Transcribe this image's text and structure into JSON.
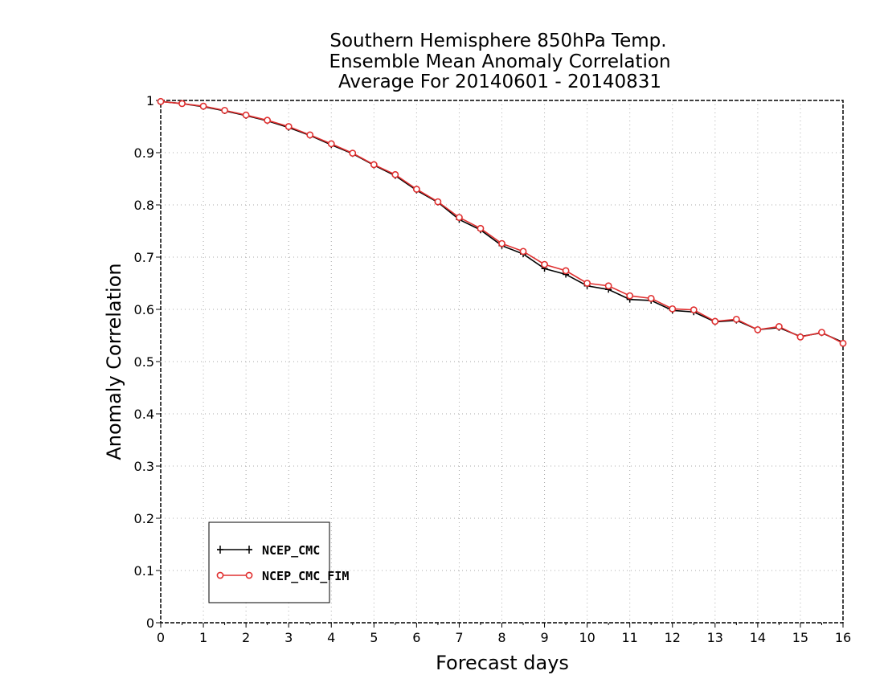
{
  "chart_data": {
    "type": "line",
    "title": [
      "Southern Hemisphere 850hPa Temp.",
      "Ensemble Mean Anomaly Correlation",
      "Average For 20140601 - 20140831"
    ],
    "xlabel": "Forecast days",
    "ylabel": "Anomaly Correlation",
    "xlim": [
      0,
      16
    ],
    "ylim": [
      0,
      1
    ],
    "xticks": [
      "0",
      "1",
      "2",
      "3",
      "4",
      "5",
      "6",
      "7",
      "8",
      "9",
      "10",
      "11",
      "12",
      "13",
      "14",
      "15",
      "16"
    ],
    "yticks": [
      "0",
      "0.1",
      "0.2",
      "0.3",
      "0.4",
      "0.5",
      "0.6",
      "0.7",
      "0.8",
      "0.9",
      "1"
    ],
    "grid": true,
    "legend_position": "bottom-left",
    "x": [
      0,
      0.5,
      1,
      1.5,
      2,
      2.5,
      3,
      3.5,
      4,
      4.5,
      5,
      5.5,
      6,
      6.5,
      7,
      7.5,
      8,
      8.5,
      9,
      9.5,
      10,
      10.5,
      11,
      11.5,
      12,
      12.5,
      13,
      13.5,
      14,
      14.5,
      15,
      15.5,
      16
    ],
    "series": [
      {
        "name": "NCEP_CMC",
        "color": "#000000",
        "marker": "plus",
        "values": [
          0.998,
          0.994,
          0.988,
          0.98,
          0.971,
          0.961,
          0.948,
          0.933,
          0.915,
          0.898,
          0.876,
          0.856,
          0.828,
          0.805,
          0.772,
          0.752,
          0.722,
          0.706,
          0.678,
          0.667,
          0.645,
          0.638,
          0.619,
          0.617,
          0.598,
          0.595,
          0.576,
          0.579,
          0.561,
          0.565,
          0.548,
          0.555,
          0.537
        ]
      },
      {
        "name": "NCEP_CMC_FIM",
        "color": "#e03030",
        "marker": "circle",
        "values": [
          0.998,
          0.994,
          0.989,
          0.981,
          0.972,
          0.962,
          0.95,
          0.934,
          0.917,
          0.899,
          0.877,
          0.858,
          0.83,
          0.806,
          0.776,
          0.755,
          0.726,
          0.711,
          0.686,
          0.674,
          0.65,
          0.645,
          0.626,
          0.621,
          0.601,
          0.599,
          0.577,
          0.581,
          0.561,
          0.567,
          0.547,
          0.556,
          0.535
        ]
      }
    ]
  }
}
